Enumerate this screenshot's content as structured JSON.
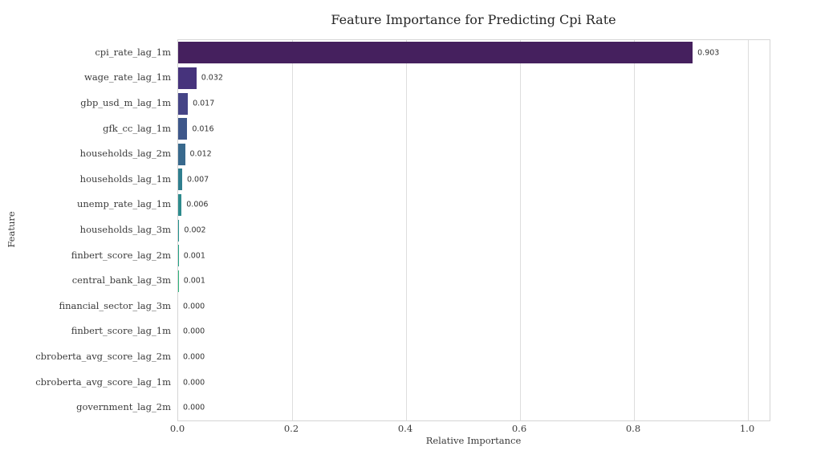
{
  "chart_data": {
    "type": "bar",
    "orientation": "horizontal",
    "title": "Feature Importance for Predicting Cpi Rate",
    "xlabel": "Relative Importance",
    "ylabel": "Feature",
    "categories": [
      "cpi_rate_lag_1m",
      "wage_rate_lag_1m",
      "gbp_usd_m_lag_1m",
      "gfk_cc_lag_1m",
      "households_lag_2m",
      "households_lag_1m",
      "unemp_rate_lag_1m",
      "households_lag_3m",
      "finbert_score_lag_2m",
      "central_bank_lag_3m",
      "financial_sector_lag_3m",
      "finbert_score_lag_1m",
      "cbroberta_avg_score_lag_2m",
      "cbroberta_avg_score_lag_1m",
      "government_lag_2m"
    ],
    "values": [
      0.903,
      0.032,
      0.017,
      0.016,
      0.012,
      0.007,
      0.006,
      0.002,
      0.001,
      0.001,
      0.0,
      0.0,
      0.0,
      0.0,
      0.0
    ],
    "value_labels": [
      "0.903",
      "0.032",
      "0.017",
      "0.016",
      "0.012",
      "0.007",
      "0.006",
      "0.002",
      "0.001",
      "0.001",
      "0.000",
      "0.000",
      "0.000",
      "0.000",
      "0.000"
    ],
    "x_ticks": [
      0.0,
      0.2,
      0.4,
      0.6,
      0.8,
      1.0
    ],
    "x_tick_labels": [
      "0.0",
      "0.2",
      "0.4",
      "0.6",
      "0.8",
      "1.0"
    ],
    "xlim": [
      0,
      1.038
    ],
    "grid": "vertical",
    "legend_position": "none",
    "bar_colors": [
      "#45205e",
      "#46337c",
      "#454486",
      "#3e578a",
      "#38698d",
      "#2f7e8e",
      "#2e8b8d",
      "#21918c",
      "#22a285",
      "#2eb37c",
      "#4ac16d",
      "#6ccd5a",
      "#97d83e",
      "#c8e020",
      "#fde725"
    ],
    "colors": {
      "background": "#ffffff",
      "grid": "#dddddd",
      "spine": "#d5d5d5",
      "title_text": "#262626",
      "tick_text": "#3b3b3b",
      "annotation_text": "#333333"
    }
  }
}
